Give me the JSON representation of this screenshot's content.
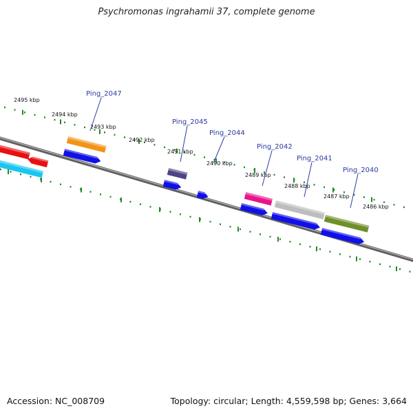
{
  "title": "Psychromonas ingrahamii 37, complete genome",
  "footer": {
    "accession": "Accession: NC_008709",
    "summary": "Topology: circular; Length: 4,559,598 bp; Genes: 3,664"
  },
  "scale_labels": [
    "2495 kbp",
    "2494 kbp",
    "2493 kbp",
    "2492 kbp",
    "2491 kbp",
    "2490 kbp",
    "2489 kbp",
    "2488 kbp",
    "2487 kbp",
    "2486 kbp"
  ],
  "gene_labels": [
    "Ping_2047",
    "Ping_2045",
    "Ping_2044",
    "Ping_2042",
    "Ping_2041",
    "Ping_2040"
  ],
  "colors": {
    "backbone": "#7a7a7a",
    "ticks": "#1f8a1f",
    "cds_blue": "#1010e8",
    "red": "#e81010",
    "cyan": "#19c6f0",
    "orange": "#f39317",
    "slate": "#4b4585",
    "magenta": "#e8148c",
    "gray": "#bdbdbd",
    "olive": "#6f8f2a",
    "label_line": "#2b3aa0"
  }
}
